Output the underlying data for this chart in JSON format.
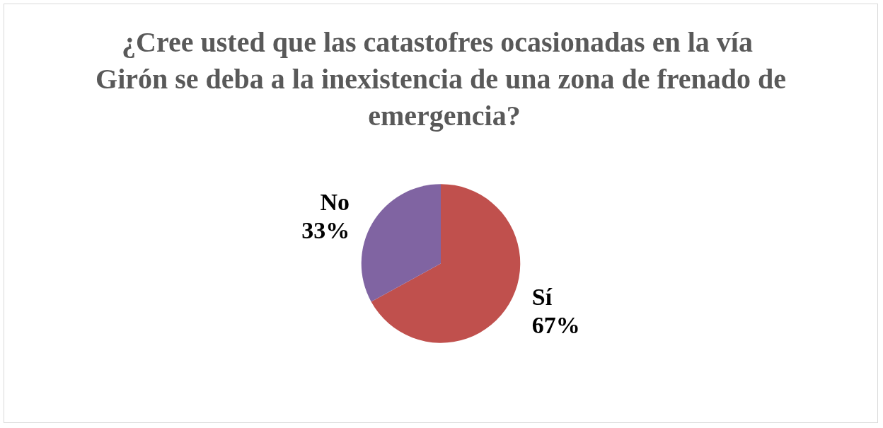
{
  "chart_data": {
    "type": "pie",
    "title": "¿Cree usted que las catastofres ocasionadas en la vía Girón se deba a la inexistencia de una zona de frenado de emergencia?",
    "categories": [
      "Sí",
      "No"
    ],
    "values": [
      67,
      33
    ],
    "colors": [
      "#c0504d",
      "#8064a2"
    ],
    "value_labels": [
      "67%",
      "33%"
    ],
    "legend": false
  }
}
